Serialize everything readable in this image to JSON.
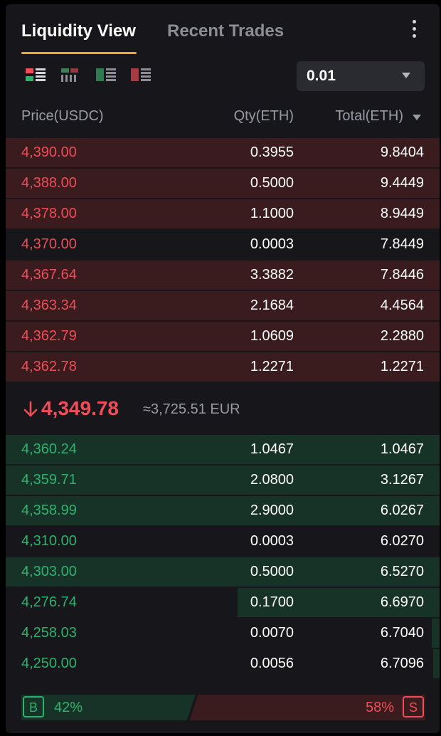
{
  "tabs": {
    "active": "Liquidity View",
    "inactive": "Recent Trades"
  },
  "toolbar": {
    "views": [
      "both-sides-icon",
      "depth-bars-icon",
      "bids-only-icon",
      "asks-only-icon"
    ],
    "precision": "0.01"
  },
  "columns": {
    "price": "Price(USDC)",
    "qty": "Qty(ETH)",
    "total": "Total(ETH)"
  },
  "asks": [
    {
      "price": "4,390.00",
      "qty": "0.3955",
      "total": "9.8404",
      "depth": 1.0
    },
    {
      "price": "4,388.00",
      "qty": "0.5000",
      "total": "9.4449",
      "depth": 1.0
    },
    {
      "price": "4,378.00",
      "qty": "1.1000",
      "total": "8.9449",
      "depth": 1.0
    },
    {
      "price": "4,370.00",
      "qty": "0.0003",
      "total": "7.8449",
      "depth": 0.0
    },
    {
      "price": "4,367.64",
      "qty": "3.3882",
      "total": "7.8446",
      "depth": 1.0
    },
    {
      "price": "4,363.34",
      "qty": "2.1684",
      "total": "4.4564",
      "depth": 1.0
    },
    {
      "price": "4,362.79",
      "qty": "1.0609",
      "total": "2.2880",
      "depth": 1.0
    },
    {
      "price": "4,362.78",
      "qty": "1.2271",
      "total": "1.2271",
      "depth": 1.0
    }
  ],
  "mid": {
    "price": "4,349.78",
    "fiat": "≈3,725.51 EUR",
    "direction": "down"
  },
  "bids": [
    {
      "price": "4,360.24",
      "qty": "1.0467",
      "total": "1.0467",
      "depth": 1.0
    },
    {
      "price": "4,359.71",
      "qty": "2.0800",
      "total": "3.1267",
      "depth": 1.0
    },
    {
      "price": "4,358.99",
      "qty": "2.9000",
      "total": "6.0267",
      "depth": 1.0
    },
    {
      "price": "4,310.00",
      "qty": "0.0003",
      "total": "6.0270",
      "depth": 0.0
    },
    {
      "price": "4,303.00",
      "qty": "0.5000",
      "total": "6.5270",
      "depth": 1.0
    },
    {
      "price": "4,276.74",
      "qty": "0.1700",
      "total": "6.6970",
      "depth": 0.466
    },
    {
      "price": "4,258.03",
      "qty": "0.0070",
      "total": "6.7040",
      "depth": 0.018
    },
    {
      "price": "4,250.00",
      "qty": "0.0056",
      "total": "6.7096",
      "depth": 0.015
    }
  ],
  "ratio": {
    "buy_label": "B",
    "buy_pct": "42%",
    "sell_pct": "58%",
    "sell_label": "S",
    "buy_fraction": 0.42
  },
  "colors": {
    "ask": "#ef4d58",
    "bid": "#2bb36e",
    "accent": "#f0a63a"
  }
}
